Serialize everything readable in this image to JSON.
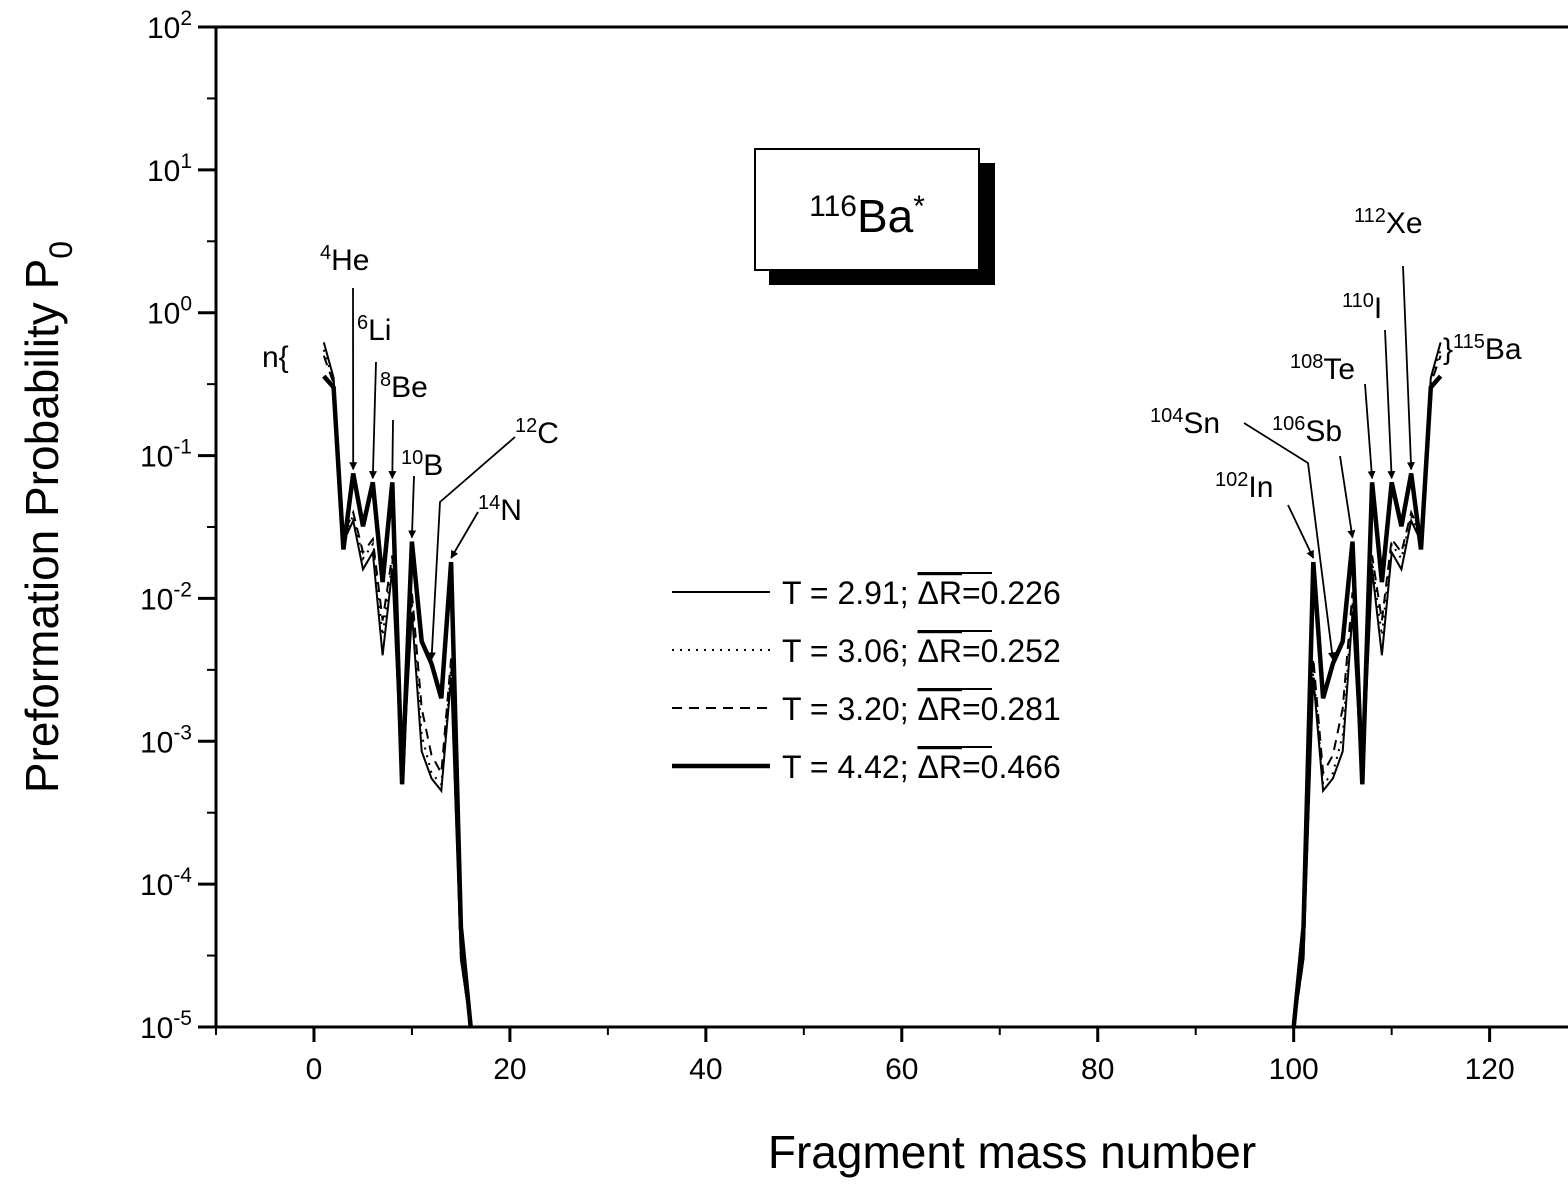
{
  "chart_data": {
    "type": "line",
    "title": "",
    "xlabel": "Fragment mass number",
    "ylabel": "Preformation Probability P",
    "ylabel_subscript": "0",
    "xlim": [
      -10,
      128
    ],
    "ylim_log10": [
      -5,
      2
    ],
    "y_scale": "log",
    "x_ticks": [
      "0",
      "20",
      "40",
      "60",
      "80",
      "100",
      "120"
    ],
    "x_tick_values": [
      0,
      20,
      40,
      60,
      80,
      100,
      120
    ],
    "y_ticks": [
      {
        "base": "10",
        "exp": "2"
      },
      {
        "base": "10",
        "exp": "1"
      },
      {
        "base": "10",
        "exp": "0"
      },
      {
        "base": "10",
        "exp": "-1"
      },
      {
        "base": "10",
        "exp": "-2"
      },
      {
        "base": "10",
        "exp": "-3"
      },
      {
        "base": "10",
        "exp": "-4"
      },
      {
        "base": "10",
        "exp": "-5"
      }
    ],
    "y_tick_log10": [
      2,
      1,
      0,
      -1,
      -2,
      -3,
      -4,
      -5
    ],
    "nucleus_box": {
      "mass": "116",
      "symbol": "Ba",
      "mark": "*"
    },
    "legend": {
      "position": "center",
      "entries": [
        {
          "label_prefix": "T = 2.91; ",
          "delta_r": "ΔR",
          "label_suffix": "=0.226",
          "style": "thin"
        },
        {
          "label_prefix": "T = 3.06; ",
          "delta_r": "ΔR",
          "label_suffix": "=0.252",
          "style": "dotted"
        },
        {
          "label_prefix": "T = 3.20; ",
          "delta_r": "ΔR",
          "label_suffix": "=0.281",
          "style": "dashed"
        },
        {
          "label_prefix": "T = 4.42; ",
          "delta_r": "ΔR",
          "label_suffix": "=0.466",
          "style": "thick"
        }
      ]
    },
    "series": [
      {
        "style": "thin",
        "x": [
          1,
          2,
          3,
          4,
          5,
          6,
          7,
          8,
          9,
          10,
          11,
          12,
          13,
          14,
          15,
          16,
          100,
          101,
          102,
          103,
          104,
          105,
          106,
          107,
          108,
          109,
          110,
          111,
          112,
          113,
          114,
          115
        ],
        "y": [
          0.62,
          0.35,
          0.025,
          0.035,
          0.016,
          0.021,
          0.004,
          0.016,
          0.0005,
          0.008,
          0.00085,
          0.00055,
          0.00045,
          0.0028,
          3e-05,
          1e-05,
          1e-05,
          3e-05,
          0.0028,
          0.00045,
          0.00055,
          0.00085,
          0.008,
          0.0005,
          0.016,
          0.004,
          0.021,
          0.016,
          0.035,
          0.025,
          0.35,
          0.62
        ]
      },
      {
        "style": "dotted",
        "x": [
          1,
          2,
          3,
          4,
          5,
          6,
          7,
          8,
          9,
          10,
          11,
          12,
          13,
          14,
          15,
          16,
          100,
          101,
          102,
          103,
          104,
          105,
          106,
          107,
          108,
          109,
          110,
          111,
          112,
          113,
          114,
          115
        ],
        "y": [
          0.55,
          0.33,
          0.027,
          0.038,
          0.019,
          0.024,
          0.0055,
          0.018,
          0.0005,
          0.0095,
          0.0011,
          0.0006,
          0.0005,
          0.0032,
          3e-05,
          1e-05,
          1e-05,
          3e-05,
          0.0032,
          0.0005,
          0.0006,
          0.0011,
          0.0095,
          0.0005,
          0.018,
          0.0055,
          0.024,
          0.019,
          0.038,
          0.027,
          0.33,
          0.55
        ]
      },
      {
        "style": "dashed",
        "x": [
          1,
          2,
          3,
          4,
          5,
          6,
          7,
          8,
          9,
          10,
          11,
          12,
          13,
          14,
          15,
          16,
          100,
          101,
          102,
          103,
          104,
          105,
          106,
          107,
          108,
          109,
          110,
          111,
          112,
          113,
          114,
          115
        ],
        "y": [
          0.5,
          0.32,
          0.028,
          0.04,
          0.021,
          0.026,
          0.007,
          0.02,
          0.0005,
          0.011,
          0.0017,
          0.0008,
          0.0006,
          0.0038,
          3e-05,
          1e-05,
          1e-05,
          3e-05,
          0.0038,
          0.0006,
          0.0008,
          0.0017,
          0.011,
          0.0005,
          0.02,
          0.007,
          0.026,
          0.021,
          0.04,
          0.028,
          0.32,
          0.5
        ]
      },
      {
        "style": "thick",
        "x": [
          1,
          2,
          3,
          4,
          5,
          6,
          7,
          8,
          9,
          10,
          11,
          12,
          13,
          14,
          15,
          16,
          100,
          101,
          102,
          103,
          104,
          105,
          106,
          107,
          108,
          109,
          110,
          111,
          112,
          113,
          114,
          115
        ],
        "y": [
          0.36,
          0.3,
          0.022,
          0.075,
          0.032,
          0.065,
          0.013,
          0.065,
          0.0005,
          0.025,
          0.005,
          0.0035,
          0.002,
          0.018,
          5e-05,
          1e-05,
          1e-05,
          5e-05,
          0.018,
          0.002,
          0.0035,
          0.005,
          0.025,
          0.0005,
          0.065,
          0.013,
          0.065,
          0.032,
          0.075,
          0.022,
          0.3,
          0.36
        ]
      }
    ],
    "annotations": [
      {
        "mass": "",
        "symbol": "n{",
        "x": 1,
        "y": 0.5
      },
      {
        "mass": "4",
        "symbol": "He",
        "x": 4,
        "y": 0.075
      },
      {
        "mass": "6",
        "symbol": "Li",
        "x": 6,
        "y": 0.065
      },
      {
        "mass": "8",
        "symbol": "Be",
        "x": 8,
        "y": 0.065
      },
      {
        "mass": "10",
        "symbol": "B",
        "x": 10,
        "y": 0.025
      },
      {
        "mass": "12",
        "symbol": "C",
        "x": 12,
        "y": 0.0035
      },
      {
        "mass": "14",
        "symbol": "N",
        "x": 14,
        "y": 0.018
      },
      {
        "mass": "102",
        "symbol": "In",
        "x": 102,
        "y": 0.018
      },
      {
        "mass": "104",
        "symbol": "Sn",
        "x": 104,
        "y": 0.0035
      },
      {
        "mass": "106",
        "symbol": "Sb",
        "x": 106,
        "y": 0.025
      },
      {
        "mass": "108",
        "symbol": "Te",
        "x": 108,
        "y": 0.065
      },
      {
        "mass": "110",
        "symbol": "I",
        "x": 110,
        "y": 0.065
      },
      {
        "mass": "112",
        "symbol": "Xe",
        "x": 112,
        "y": 0.075
      },
      {
        "mass": "115",
        "symbol": "Ba",
        "prefix": "}",
        "x": 115,
        "y": 0.5
      }
    ],
    "grid": false
  }
}
